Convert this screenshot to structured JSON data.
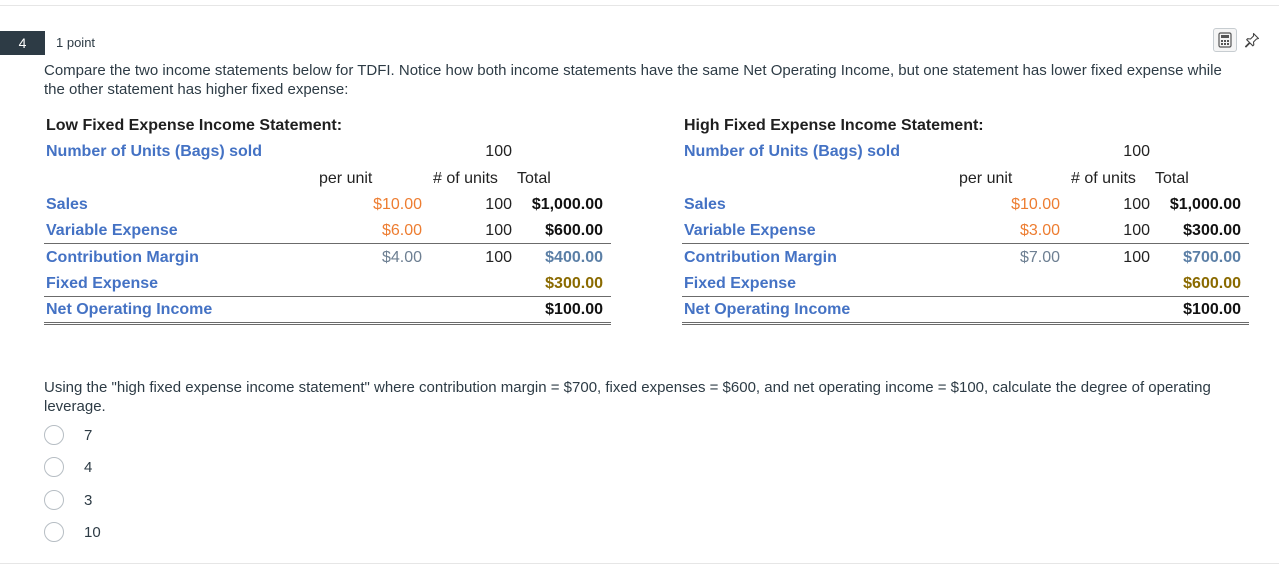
{
  "question": {
    "number": "4",
    "points": "1 point",
    "prompt": "Compare the two income statements below for TDFI. Notice how both income statements have the same Net Operating Income, but one statement has lower fixed expense while the other statement has higher fixed expense:",
    "tools": {
      "calculator_icon": "calculator-icon",
      "pin_icon": "pin-icon"
    }
  },
  "low": {
    "title": "Low Fixed Expense Income Statement:",
    "units_label": "Number of Units (Bags) sold",
    "units_value": "100",
    "col_per_unit": "per unit",
    "col_units": "# of units",
    "col_total": "Total",
    "rows": [
      {
        "label": "Sales",
        "per_unit": "$10.00",
        "units": "100",
        "total": "$1,000.00"
      },
      {
        "label": "Variable Expense",
        "per_unit": "$6.00",
        "units": "100",
        "total": "$600.00"
      },
      {
        "label": "Contribution Margin",
        "per_unit": "$4.00",
        "units": "100",
        "total": "$400.00"
      },
      {
        "label": "Fixed Expense",
        "per_unit": "",
        "units": "",
        "total": "$300.00"
      },
      {
        "label": "Net Operating Income",
        "per_unit": "",
        "units": "",
        "total": "$100.00"
      }
    ]
  },
  "high": {
    "title": "High Fixed Expense Income Statement:",
    "units_label": "Number of Units (Bags) sold",
    "units_value": "100",
    "col_per_unit": "per unit",
    "col_units": "# of units",
    "col_total": "Total",
    "rows": [
      {
        "label": "Sales",
        "per_unit": "$10.00",
        "units": "100",
        "total": "$1,000.00"
      },
      {
        "label": "Variable Expense",
        "per_unit": "$3.00",
        "units": "100",
        "total": "$300.00"
      },
      {
        "label": "Contribution Margin",
        "per_unit": "$7.00",
        "units": "100",
        "total": "$700.00"
      },
      {
        "label": "Fixed Expense",
        "per_unit": "",
        "units": "",
        "total": "$600.00"
      },
      {
        "label": "Net Operating Income",
        "per_unit": "",
        "units": "",
        "total": "$100.00"
      }
    ]
  },
  "question2": "Using the \"high fixed expense income statement\" where contribution margin = $700, fixed expenses = $600, and net operating income = $100, calculate the degree of operating leverage.",
  "options": [
    "7",
    "4",
    "3",
    "10"
  ]
}
